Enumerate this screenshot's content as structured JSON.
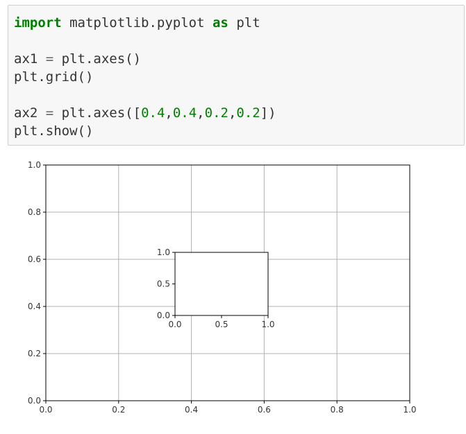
{
  "cell": {
    "code_lines": [
      {
        "parts": [
          {
            "t": "import",
            "c": "kw"
          },
          {
            "t": " matplotlib.pyplot ",
            "c": ""
          },
          {
            "t": "as",
            "c": "kw"
          },
          {
            "t": " plt",
            "c": ""
          }
        ]
      },
      {
        "parts": [
          {
            "t": "",
            "c": ""
          }
        ]
      },
      {
        "parts": [
          {
            "t": "ax1 ",
            "c": ""
          },
          {
            "t": "=",
            "c": "op"
          },
          {
            "t": " plt.axes()",
            "c": ""
          }
        ]
      },
      {
        "parts": [
          {
            "t": "plt.grid()",
            "c": ""
          }
        ]
      },
      {
        "parts": [
          {
            "t": "",
            "c": ""
          }
        ]
      },
      {
        "parts": [
          {
            "t": "ax2 ",
            "c": ""
          },
          {
            "t": "=",
            "c": "op"
          },
          {
            "t": " plt.axes([",
            "c": ""
          },
          {
            "t": "0.4",
            "c": "num"
          },
          {
            "t": ",",
            "c": ""
          },
          {
            "t": "0.4",
            "c": "num"
          },
          {
            "t": ",",
            "c": ""
          },
          {
            "t": "0.2",
            "c": "num"
          },
          {
            "t": ",",
            "c": ""
          },
          {
            "t": "0.2",
            "c": "num"
          },
          {
            "t": "])",
            "c": ""
          }
        ]
      },
      {
        "parts": [
          {
            "t": "plt.show()",
            "c": ""
          }
        ]
      }
    ]
  },
  "chart_data": [
    {
      "type": "line",
      "role": "main axes",
      "series": [],
      "xlim": [
        0,
        1
      ],
      "ylim": [
        0,
        1
      ],
      "xticks": [
        "0.0",
        "0.2",
        "0.4",
        "0.6",
        "0.8",
        "1.0"
      ],
      "yticks": [
        "0.0",
        "0.2",
        "0.4",
        "0.6",
        "0.8",
        "1.0"
      ],
      "grid": true
    },
    {
      "type": "line",
      "role": "inset axes",
      "series": [],
      "xlim": [
        0,
        1
      ],
      "ylim": [
        0,
        1
      ],
      "xticks": [
        "0.0",
        "0.5",
        "1.0"
      ],
      "yticks": [
        "0.0",
        "0.5",
        "1.0"
      ],
      "grid": false
    }
  ],
  "colors": {
    "axis": "#000000",
    "grid": "#b0b0b0",
    "tick_text": "#333333"
  }
}
